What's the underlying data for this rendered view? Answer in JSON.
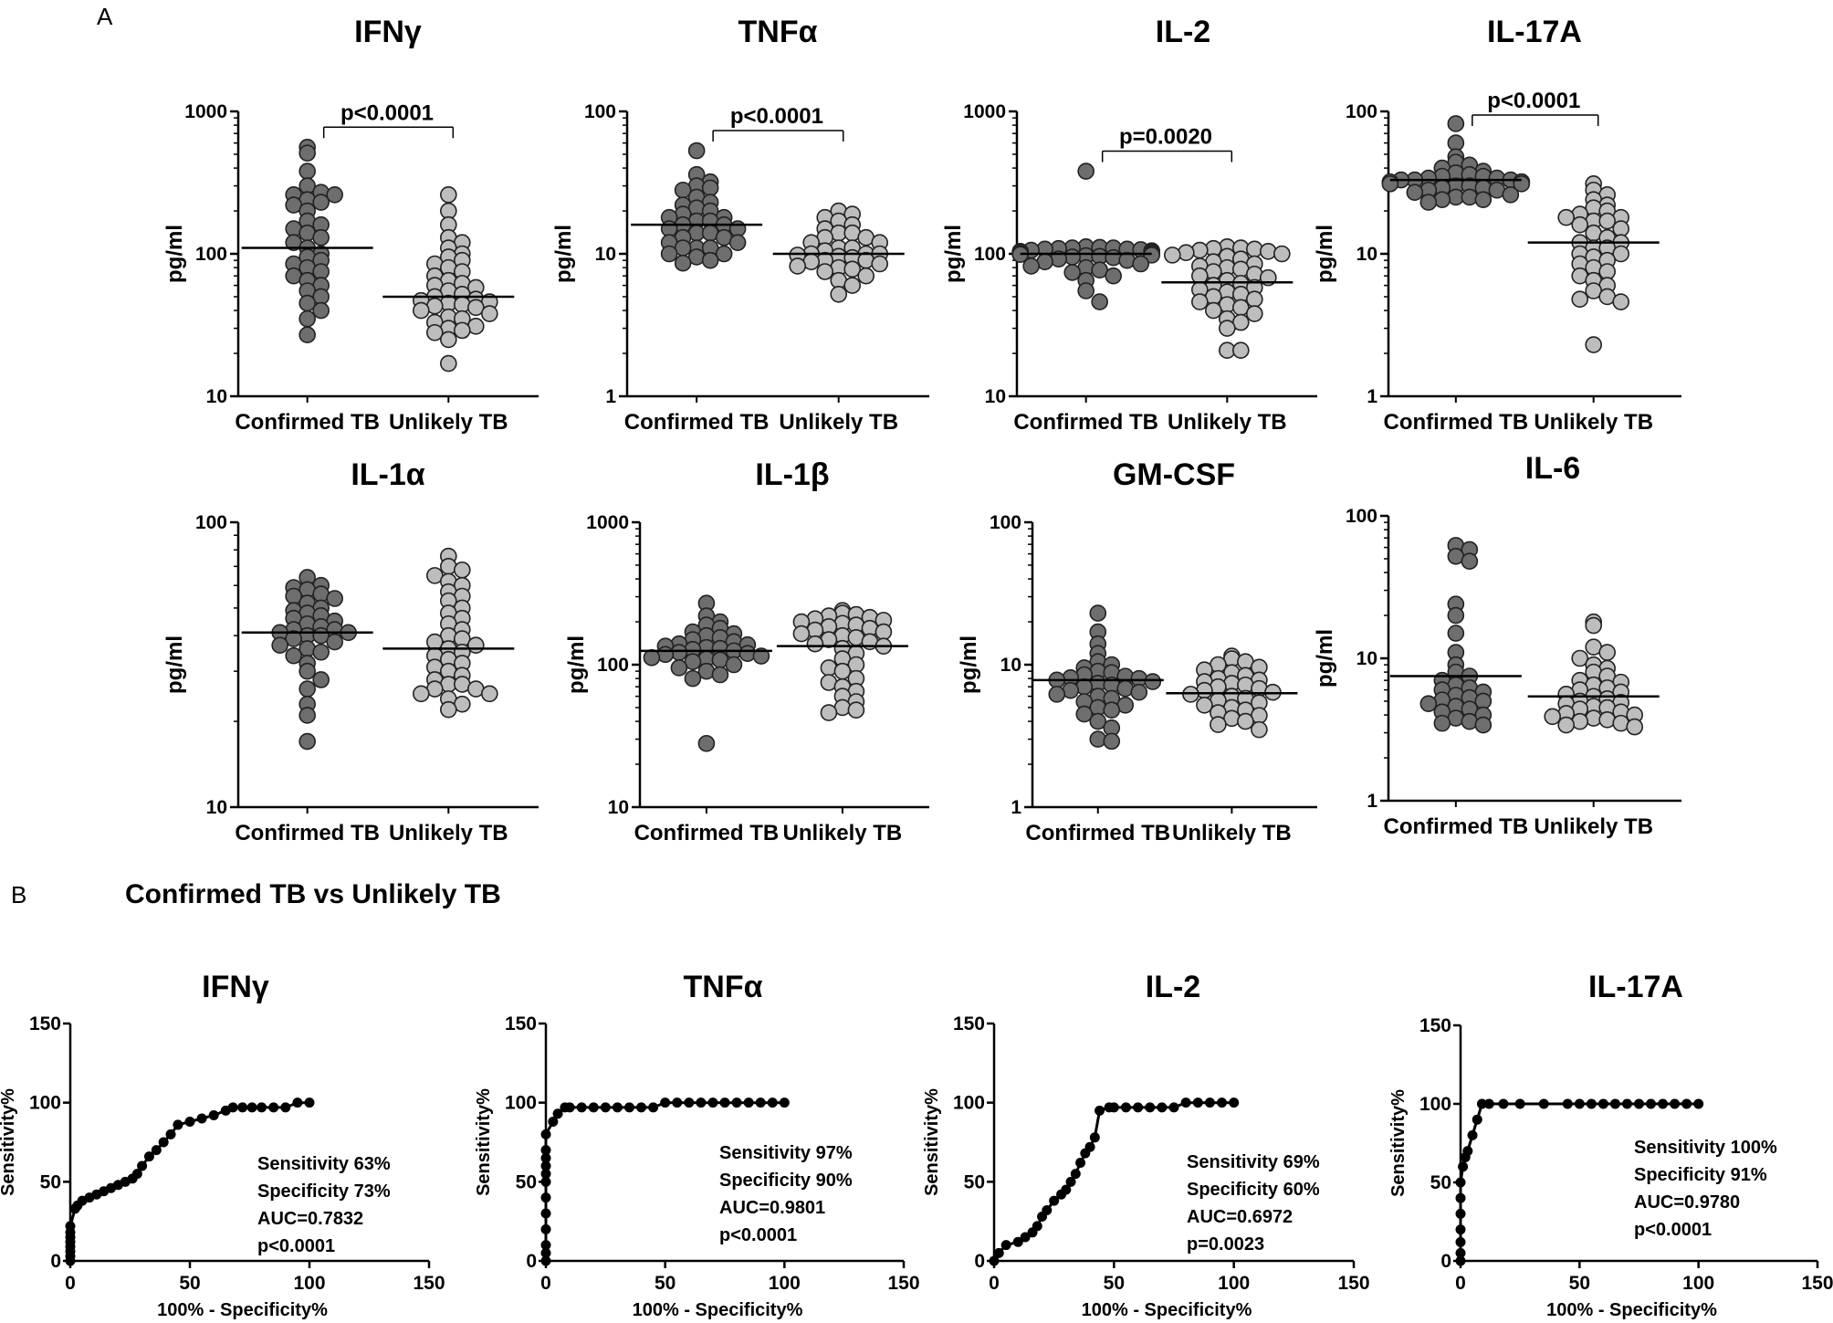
{
  "panel_labels": {
    "a": "A",
    "b": "B"
  },
  "section_b_title": "Confirmed TB vs Unlikely TB",
  "colors": {
    "confirmed": "#6e6e6e",
    "unlikely": "#bdbdbd",
    "roc": "#000000"
  },
  "chart_data": [
    {
      "type": "scatter",
      "title": "IFNγ",
      "ylabel": "pg/ml",
      "yscale": "log",
      "ylim": [
        10,
        1000
      ],
      "yticks": [
        "10",
        "100",
        "1000"
      ],
      "categories": [
        "Confirmed TB",
        "Unlikely TB"
      ],
      "pvalue": "p<0.0001",
      "series": [
        {
          "name": "Confirmed TB",
          "median": 110,
          "values": [
            560,
            510,
            380,
            300,
            270,
            260,
            260,
            240,
            230,
            220,
            200,
            170,
            160,
            150,
            140,
            130,
            120,
            110,
            100,
            95,
            90,
            85,
            80,
            75,
            70,
            65,
            60,
            55,
            50,
            45,
            40,
            35,
            27
          ]
        },
        {
          "name": "Unlikely TB",
          "median": 50,
          "values": [
            260,
            200,
            160,
            130,
            120,
            110,
            100,
            95,
            90,
            85,
            80,
            75,
            70,
            65,
            62,
            60,
            58,
            55,
            52,
            50,
            48,
            47,
            46,
            45,
            44,
            43,
            42,
            40,
            38,
            36,
            35,
            33,
            31,
            30,
            29,
            28,
            25,
            17
          ]
        }
      ]
    },
    {
      "type": "scatter",
      "title": "TNFα",
      "ylabel": "pg/ml",
      "yscale": "log",
      "ylim": [
        1,
        100
      ],
      "yticks": [
        "1",
        "10",
        "100"
      ],
      "categories": [
        "Confirmed TB",
        "Unlikely TB"
      ],
      "pvalue": "p<0.0001",
      "series": [
        {
          "name": "Confirmed TB",
          "median": 16,
          "values": [
            53,
            36,
            32,
            30,
            29,
            28,
            25,
            23,
            22,
            21,
            20,
            19,
            18,
            18,
            17,
            17,
            16,
            16,
            15,
            15,
            14,
            14,
            13,
            13,
            12,
            12,
            11,
            11,
            11,
            10,
            10,
            9.5,
            9,
            8.6
          ]
        },
        {
          "name": "Unlikely TB",
          "median": 10,
          "values": [
            20,
            19,
            18,
            17,
            16,
            15,
            14,
            14,
            13,
            13,
            12,
            12,
            11,
            11,
            10.5,
            10,
            10,
            10,
            9.8,
            9.6,
            9.4,
            9,
            9,
            8.8,
            8.5,
            8.2,
            8,
            7.8,
            7.5,
            7,
            6.5,
            6,
            5.2
          ]
        }
      ]
    },
    {
      "type": "scatter",
      "title": "IL-2",
      "ylabel": "pg/ml",
      "yscale": "log",
      "ylim": [
        10,
        1000
      ],
      "yticks": [
        "10",
        "100",
        "1000"
      ],
      "categories": [
        "Confirmed TB",
        "Unlikely TB"
      ],
      "pvalue": "p=0.0020",
      "series": [
        {
          "name": "Confirmed TB",
          "median": 100,
          "values": [
            380,
            112,
            111,
            110,
            110,
            109,
            108,
            108,
            107,
            106,
            105,
            104,
            104,
            103,
            102,
            101,
            100,
            99,
            98,
            97,
            96,
            95,
            94,
            92,
            90,
            88,
            85,
            82,
            80,
            77,
            74,
            70,
            65,
            55,
            46
          ]
        },
        {
          "name": "Unlikely TB",
          "median": 63,
          "values": [
            112,
            110,
            109,
            108,
            106,
            104,
            102,
            100,
            98,
            96,
            92,
            88,
            85,
            82,
            80,
            78,
            75,
            72,
            70,
            68,
            65,
            62,
            60,
            58,
            56,
            54,
            52,
            50,
            48,
            46,
            44,
            42,
            40,
            38,
            35,
            33,
            30,
            21,
            21
          ]
        }
      ]
    },
    {
      "type": "scatter",
      "title": "IL-17A",
      "ylabel": "pg/ml",
      "yscale": "log",
      "ylim": [
        1,
        100
      ],
      "yticks": [
        "1",
        "10",
        "100"
      ],
      "categories": [
        "Confirmed TB",
        "Unlikely TB"
      ],
      "pvalue": "p<0.0001",
      "series": [
        {
          "name": "Confirmed TB",
          "median": 33,
          "values": [
            82,
            60,
            48,
            44,
            42,
            40,
            38,
            37,
            36,
            35,
            35,
            34,
            34,
            33,
            33,
            33,
            32,
            32,
            32,
            31,
            31,
            30,
            30,
            29,
            29,
            28,
            28,
            27,
            26,
            25,
            25,
            24,
            24,
            23
          ]
        },
        {
          "name": "Unlikely TB",
          "median": 12,
          "values": [
            31,
            28,
            26,
            24,
            22,
            21,
            20,
            19,
            18,
            18,
            17,
            17,
            16,
            15,
            14,
            13,
            12,
            12,
            11,
            11,
            10,
            10,
            9.5,
            9,
            8.5,
            8,
            7.5,
            7,
            6.5,
            6,
            5.5,
            5,
            4.8,
            4.6,
            2.3
          ]
        }
      ]
    },
    {
      "type": "scatter",
      "title": "IL-1α",
      "ylabel": "pg/ml",
      "yscale": "log",
      "ylim": [
        10,
        100
      ],
      "yticks": [
        "10",
        "100"
      ],
      "categories": [
        "Confirmed TB",
        "Unlikely TB"
      ],
      "pvalue": "",
      "series": [
        {
          "name": "Confirmed TB",
          "median": 41,
          "values": [
            64,
            60,
            59,
            58,
            56,
            55,
            54,
            52,
            50,
            49,
            48,
            47,
            46,
            45,
            44,
            43,
            42,
            42,
            41,
            41,
            40,
            40,
            39,
            38,
            37,
            36,
            35,
            34,
            32,
            30,
            28,
            26,
            23,
            21,
            17
          ]
        },
        {
          "name": "Unlikely TB",
          "median": 36,
          "values": [
            76,
            70,
            68,
            65,
            62,
            60,
            57,
            55,
            53,
            50,
            48,
            46,
            44,
            42,
            40,
            39,
            38,
            37,
            36,
            35,
            34,
            33,
            32,
            31,
            30,
            29,
            28,
            27,
            27,
            26,
            26,
            25,
            25,
            24,
            23,
            22
          ]
        }
      ]
    },
    {
      "type": "scatter",
      "title": "IL-1β",
      "ylabel": "pg/ml",
      "yscale": "log",
      "ylim": [
        10,
        1000
      ],
      "yticks": [
        "10",
        "100",
        "1000"
      ],
      "categories": [
        "Confirmed TB",
        "Unlikely TB"
      ],
      "pvalue": "",
      "series": [
        {
          "name": "Confirmed TB",
          "median": 125,
          "values": [
            270,
            220,
            200,
            190,
            180,
            170,
            165,
            160,
            155,
            150,
            145,
            140,
            138,
            135,
            132,
            130,
            128,
            125,
            122,
            120,
            118,
            115,
            112,
            110,
            108,
            105,
            100,
            95,
            90,
            85,
            80,
            28
          ]
        },
        {
          "name": "Unlikely TB",
          "median": 135,
          "values": [
            240,
            230,
            225,
            220,
            215,
            210,
            205,
            200,
            195,
            190,
            185,
            180,
            175,
            170,
            165,
            160,
            155,
            150,
            145,
            140,
            135,
            130,
            120,
            110,
            100,
            95,
            90,
            80,
            75,
            70,
            65,
            60,
            55,
            50,
            48,
            46
          ]
        }
      ]
    },
    {
      "type": "scatter",
      "title": "GM-CSF",
      "ylabel": "pg/ml",
      "yscale": "log",
      "ylim": [
        1,
        100
      ],
      "yticks": [
        "1",
        "10",
        "100"
      ],
      "categories": [
        "Confirmed TB",
        "Unlikely TB"
      ],
      "pvalue": "",
      "series": [
        {
          "name": "Confirmed TB",
          "median": 7.8,
          "values": [
            23,
            17,
            14,
            12,
            10.5,
            10,
            9.5,
            9,
            8.8,
            8.5,
            8.3,
            8.1,
            8,
            7.8,
            7.6,
            7.4,
            7.2,
            7,
            6.8,
            6.6,
            6.4,
            6.2,
            6,
            5.8,
            5.5,
            5.2,
            5,
            4.8,
            4.5,
            4,
            3.6,
            3,
            2.9
          ]
        },
        {
          "name": "Unlikely TB",
          "median": 6.3,
          "values": [
            11.5,
            11,
            10.5,
            10,
            9.6,
            9.2,
            8.8,
            8.4,
            8,
            7.8,
            7.6,
            7.4,
            7.2,
            7,
            6.8,
            6.6,
            6.4,
            6.2,
            6,
            5.8,
            5.6,
            5.4,
            5.2,
            5,
            4.8,
            4.6,
            4.4,
            4.2,
            4,
            3.8,
            3.5
          ]
        }
      ]
    },
    {
      "type": "scatter",
      "title": "IL-6",
      "ylabel": "pg/ml",
      "yscale": "log",
      "ylim": [
        1,
        100
      ],
      "yticks": [
        "1",
        "10",
        "100"
      ],
      "categories": [
        "Confirmed TB",
        "Unlikely TB"
      ],
      "pvalue": "",
      "series": [
        {
          "name": "Confirmed TB",
          "median": 7.5,
          "values": [
            62,
            58,
            52,
            48,
            24,
            20,
            15,
            11,
            9,
            8,
            7.5,
            7,
            6.5,
            6.2,
            6,
            5.8,
            5.5,
            5.3,
            5.1,
            5,
            4.8,
            4.6,
            4.4,
            4.2,
            4,
            3.8,
            3.6,
            3.5,
            3.4
          ]
        },
        {
          "name": "Unlikely TB",
          "median": 5.4,
          "values": [
            18,
            17,
            12,
            11,
            10,
            9,
            8.5,
            8,
            7.5,
            7,
            6.8,
            6.5,
            6.2,
            6,
            5.8,
            5.6,
            5.4,
            5.2,
            5,
            4.9,
            4.8,
            4.6,
            4.5,
            4.4,
            4.2,
            4.1,
            4,
            3.9,
            3.8,
            3.7,
            3.6,
            3.5,
            3.4,
            3.3
          ]
        }
      ]
    },
    {
      "type": "line",
      "title": "IFNγ",
      "xlabel": "100% - Specificity%",
      "ylabel": "Sensitivity%",
      "xlim": [
        0,
        150
      ],
      "ylim": [
        0,
        150
      ],
      "xticks": [
        "0",
        "50",
        "100",
        "150"
      ],
      "yticks": [
        "0",
        "50",
        "100",
        "150"
      ],
      "stats": [
        "Sensitivity 63%",
        "Specificity 73%",
        "AUC=0.7832",
        "p<0.0001"
      ],
      "x": [
        0,
        0,
        0,
        0,
        0,
        0,
        0,
        0,
        2,
        3,
        5,
        8,
        11,
        14,
        17,
        20,
        23,
        26,
        28,
        30,
        33,
        36,
        39,
        42,
        45,
        50,
        55,
        60,
        65,
        68,
        72,
        76,
        80,
        85,
        90,
        95,
        100
      ],
      "y": [
        0,
        3,
        6,
        9,
        12,
        15,
        18,
        22,
        33,
        35,
        38,
        40,
        42,
        44,
        46,
        48,
        50,
        52,
        55,
        60,
        66,
        70,
        75,
        80,
        86,
        88,
        90,
        92,
        95,
        97,
        97,
        97,
        97,
        97,
        97,
        100,
        100
      ]
    },
    {
      "type": "line",
      "title": "TNFα",
      "xlabel": "100% - Specificity%",
      "ylabel": "Sensitivity%",
      "xlim": [
        0,
        150
      ],
      "ylim": [
        0,
        150
      ],
      "xticks": [
        "0",
        "50",
        "100",
        "150"
      ],
      "yticks": [
        "0",
        "50",
        "100",
        "150"
      ],
      "stats": [
        "Sensitivity 97%",
        "Specificity 90%",
        "AUC=0.9801",
        "p<0.0001"
      ],
      "x": [
        0,
        0,
        0,
        0,
        0,
        0,
        0,
        0,
        0,
        0,
        0,
        0,
        3,
        5,
        8,
        10,
        15,
        20,
        25,
        30,
        35,
        40,
        45,
        50,
        55,
        60,
        65,
        70,
        75,
        80,
        85,
        90,
        95,
        100
      ],
      "y": [
        0,
        5,
        10,
        20,
        30,
        40,
        50,
        55,
        60,
        65,
        70,
        80,
        88,
        93,
        97,
        97,
        97,
        97,
        97,
        97,
        97,
        97,
        97,
        100,
        100,
        100,
        100,
        100,
        100,
        100,
        100,
        100,
        100,
        100
      ]
    },
    {
      "type": "line",
      "title": "IL-2",
      "xlabel": "100% - Specificity%",
      "ylabel": "Sensitivity%",
      "xlim": [
        0,
        150
      ],
      "ylim": [
        0,
        150
      ],
      "xticks": [
        "0",
        "50",
        "100",
        "150"
      ],
      "yticks": [
        "0",
        "50",
        "100",
        "150"
      ],
      "stats": [
        "Sensitivity 69%",
        "Specificity 60%",
        "AUC=0.6972",
        "p=0.0023"
      ],
      "x": [
        0,
        2,
        5,
        10,
        13,
        16,
        18,
        20,
        22,
        25,
        28,
        30,
        32,
        34,
        36,
        38,
        40,
        42,
        44,
        48,
        50,
        55,
        60,
        65,
        70,
        75,
        80,
        85,
        90,
        95,
        100
      ],
      "y": [
        0,
        5,
        10,
        12,
        15,
        18,
        22,
        28,
        32,
        38,
        42,
        45,
        50,
        55,
        62,
        68,
        72,
        78,
        95,
        97,
        97,
        97,
        97,
        97,
        97,
        97,
        100,
        100,
        100,
        100,
        100
      ]
    },
    {
      "type": "line",
      "title": "IL-17A",
      "xlabel": "100% - Specificity%",
      "ylabel": "Sensitivity%",
      "xlim": [
        0,
        150
      ],
      "ylim": [
        0,
        150
      ],
      "xticks": [
        "0",
        "50",
        "100",
        "150"
      ],
      "yticks": [
        "0",
        "50",
        "100",
        "150"
      ],
      "stats": [
        "Sensitivity 100%",
        "Specificity 91%",
        "AUC=0.9780",
        "p<0.0001"
      ],
      "x": [
        0,
        0,
        0,
        0,
        0,
        0,
        0,
        1,
        2,
        3,
        5,
        7,
        9,
        12,
        18,
        25,
        35,
        45,
        50,
        55,
        60,
        65,
        70,
        75,
        80,
        85,
        90,
        95,
        100
      ],
      "y": [
        0,
        5,
        12,
        20,
        30,
        40,
        50,
        60,
        66,
        70,
        80,
        90,
        100,
        100,
        100,
        100,
        100,
        100,
        100,
        100,
        100,
        100,
        100,
        100,
        100,
        100,
        100,
        100,
        100
      ]
    }
  ]
}
